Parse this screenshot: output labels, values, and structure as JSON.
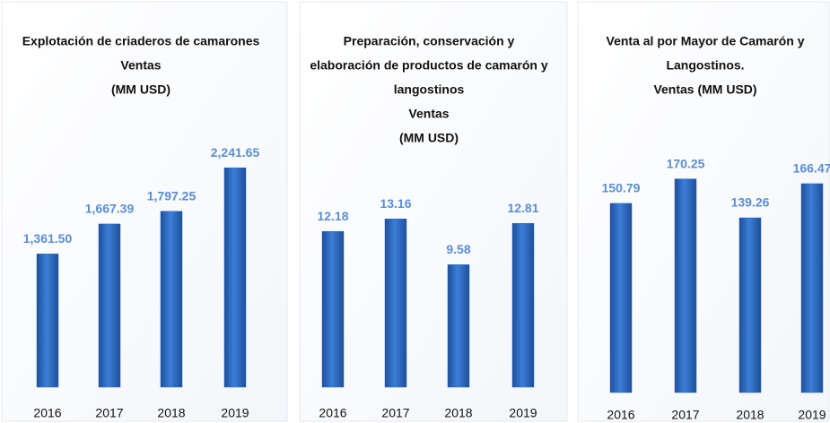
{
  "chart_data": [
    {
      "type": "bar",
      "title": [
        "Explotación de criaderos de camarones",
        "Ventas",
        "(MM USD)"
      ],
      "categories": [
        "2016",
        "2017",
        "2018",
        "2019"
      ],
      "values": [
        1361.5,
        1667.39,
        1797.25,
        2241.65
      ],
      "value_labels": [
        "1,361.50",
        "1,667.39",
        "1,797.25",
        "2,241.65"
      ],
      "color": "#2a68c2",
      "ylim": [
        0,
        2500
      ]
    },
    {
      "type": "bar",
      "title": [
        "Preparación, conservación y",
        "elaboración de productos de camarón y",
        "langostinos",
        "Ventas",
        "(MM USD)"
      ],
      "categories": [
        "2016",
        "2017",
        "2018",
        "2019"
      ],
      "values": [
        12.18,
        13.16,
        9.58,
        12.81
      ],
      "value_labels": [
        "12.18",
        "13.16",
        "9.58",
        "12.81"
      ],
      "color": "#2a68c2",
      "ylim": [
        0,
        15
      ]
    },
    {
      "type": "bar",
      "title": [
        "Venta al por Mayor de Camarón y",
        "Langostinos.",
        "Ventas  (MM USD)"
      ],
      "categories": [
        "2016",
        "2017",
        "2018",
        "2019"
      ],
      "values": [
        150.79,
        170.25,
        139.26,
        166.47
      ],
      "value_labels": [
        "150.79",
        "170.25",
        "139.26",
        "166.47"
      ],
      "color": "#2a68c2",
      "ylim": [
        0,
        180
      ]
    }
  ]
}
